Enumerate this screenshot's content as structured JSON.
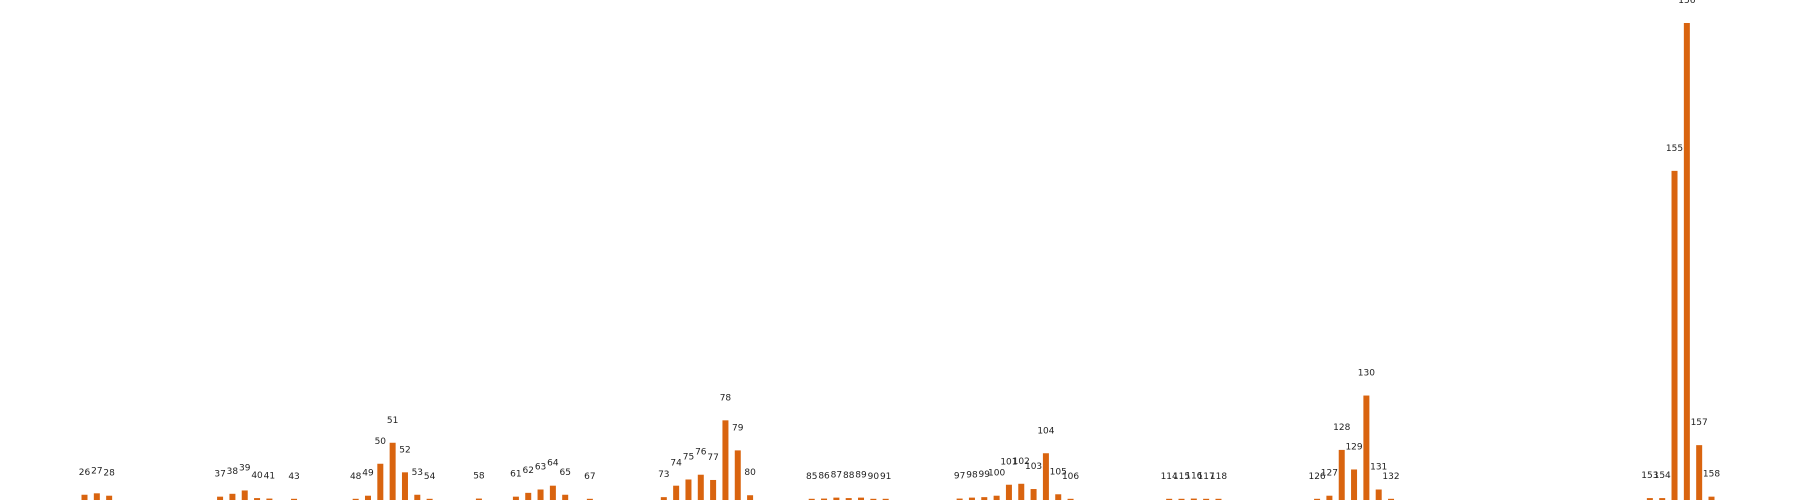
{
  "chart_data": {
    "type": "bar",
    "title": "",
    "xlabel": "",
    "ylabel": "",
    "axes_visible": false,
    "grid": false,
    "bar_color": "#d9640f",
    "x_range": [
      23,
      160
    ],
    "ylim": [
      0,
      1.0
    ],
    "x": [
      26,
      27,
      28,
      37,
      38,
      39,
      40,
      41,
      43,
      48,
      49,
      50,
      51,
      52,
      53,
      54,
      58,
      61,
      62,
      63,
      64,
      65,
      67,
      73,
      74,
      75,
      76,
      77,
      78,
      79,
      80,
      85,
      86,
      87,
      88,
      89,
      90,
      91,
      97,
      98,
      99,
      100,
      101,
      102,
      103,
      104,
      105,
      106,
      114,
      115,
      116,
      117,
      118,
      126,
      127,
      128,
      129,
      130,
      131,
      132,
      153,
      154,
      155,
      156,
      157,
      158
    ],
    "values": [
      0.011,
      0.014,
      0.009,
      0.007,
      0.013,
      0.02,
      0.004,
      0.003,
      0.001,
      0.001,
      0.009,
      0.076,
      0.12,
      0.058,
      0.011,
      0.001,
      0.003,
      0.007,
      0.015,
      0.022,
      0.03,
      0.011,
      0.001,
      0.006,
      0.03,
      0.043,
      0.053,
      0.042,
      0.167,
      0.104,
      0.01,
      0.001,
      0.003,
      0.005,
      0.004,
      0.005,
      0.002,
      0.001,
      0.003,
      0.005,
      0.006,
      0.009,
      0.032,
      0.034,
      0.023,
      0.098,
      0.012,
      0.001,
      0.001,
      0.001,
      0.003,
      0.002,
      0.001,
      0.002,
      0.009,
      0.105,
      0.064,
      0.219,
      0.022,
      0.001,
      0.004,
      0.004,
      0.69,
      1.0,
      0.115,
      0.007
    ]
  }
}
